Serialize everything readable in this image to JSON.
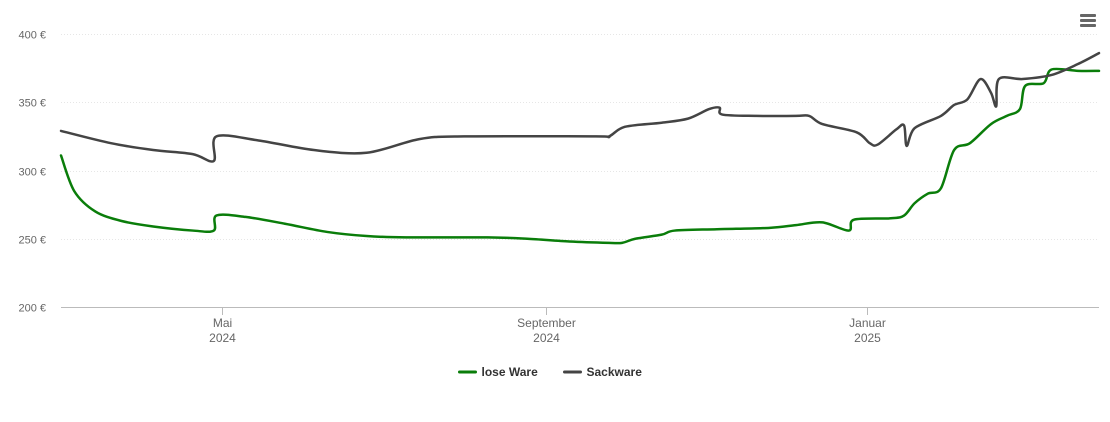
{
  "menu": {
    "icon": "hamburger-menu-icon"
  },
  "chart_data": {
    "type": "line",
    "title": "",
    "xlabel": "",
    "ylabel": "",
    "x_type": "date",
    "xlim": [
      "2024-03-01",
      "2025-03-30"
    ],
    "ylim": [
      200,
      400
    ],
    "y_ticks": [
      {
        "value": 200,
        "label": "200 €"
      },
      {
        "value": 250,
        "label": "250 €"
      },
      {
        "value": 300,
        "label": "300 €"
      },
      {
        "value": 350,
        "label": "350 €"
      },
      {
        "value": 400,
        "label": "400 €"
      }
    ],
    "x_ticks": [
      {
        "date": "2024-05-01",
        "label": "Mai",
        "sublabel": "2024"
      },
      {
        "date": "2024-09-01",
        "label": "September",
        "sublabel": "2024"
      },
      {
        "date": "2025-01-01",
        "label": "Januar",
        "sublabel": "2025"
      }
    ],
    "grid": "horizontal",
    "legend_position": "bottom-center",
    "series": [
      {
        "name": "lose Ware",
        "color": "#0a7d0a",
        "points": [
          [
            "2024-03-01",
            311
          ],
          [
            "2024-03-06",
            285
          ],
          [
            "2024-03-14",
            270
          ],
          [
            "2024-03-24",
            263
          ],
          [
            "2024-04-05",
            259
          ],
          [
            "2024-04-20",
            256
          ],
          [
            "2024-04-28",
            256
          ],
          [
            "2024-04-29",
            267
          ],
          [
            "2024-05-10",
            266
          ],
          [
            "2024-05-25",
            261
          ],
          [
            "2024-06-10",
            255
          ],
          [
            "2024-06-25",
            252
          ],
          [
            "2024-07-10",
            251
          ],
          [
            "2024-08-10",
            251
          ],
          [
            "2024-08-25",
            250
          ],
          [
            "2024-09-10",
            248
          ],
          [
            "2024-09-25",
            247
          ],
          [
            "2024-09-30",
            247
          ],
          [
            "2024-10-05",
            250
          ],
          [
            "2024-10-15",
            253
          ],
          [
            "2024-10-20",
            256
          ],
          [
            "2024-11-05",
            257
          ],
          [
            "2024-11-25",
            258
          ],
          [
            "2024-12-05",
            260
          ],
          [
            "2024-12-15",
            262
          ],
          [
            "2024-12-25",
            256
          ],
          [
            "2024-12-27",
            264
          ],
          [
            "2025-01-10",
            265
          ],
          [
            "2025-01-15",
            267
          ],
          [
            "2025-01-19",
            276
          ],
          [
            "2025-01-24",
            283
          ],
          [
            "2025-01-29",
            287
          ],
          [
            "2025-02-03",
            315
          ],
          [
            "2025-02-09",
            320
          ],
          [
            "2025-02-17",
            334
          ],
          [
            "2025-02-23",
            340
          ],
          [
            "2025-02-28",
            345
          ],
          [
            "2025-03-02",
            362
          ],
          [
            "2025-03-09",
            364
          ],
          [
            "2025-03-12",
            374
          ],
          [
            "2025-03-22",
            373
          ],
          [
            "2025-03-30",
            373
          ]
        ]
      },
      {
        "name": "Sackware",
        "color": "#444444",
        "points": [
          [
            "2024-03-01",
            329
          ],
          [
            "2024-03-20",
            320
          ],
          [
            "2024-04-05",
            315
          ],
          [
            "2024-04-20",
            312
          ],
          [
            "2024-04-28",
            307
          ],
          [
            "2024-04-29",
            325
          ],
          [
            "2024-05-15",
            322
          ],
          [
            "2024-06-05",
            315
          ],
          [
            "2024-06-25",
            313
          ],
          [
            "2024-07-15",
            323
          ],
          [
            "2024-08-01",
            325
          ],
          [
            "2024-09-20",
            325
          ],
          [
            "2024-09-25",
            325
          ],
          [
            "2024-10-01",
            332
          ],
          [
            "2024-10-15",
            335
          ],
          [
            "2024-10-25",
            338
          ],
          [
            "2024-11-02",
            345
          ],
          [
            "2024-11-06",
            346
          ],
          [
            "2024-11-07",
            341
          ],
          [
            "2024-11-20",
            340
          ],
          [
            "2024-12-05",
            340
          ],
          [
            "2024-12-10",
            340
          ],
          [
            "2024-12-15",
            334
          ],
          [
            "2024-12-28",
            328
          ],
          [
            "2025-01-02",
            320
          ],
          [
            "2025-01-05",
            319
          ],
          [
            "2025-01-12",
            330
          ],
          [
            "2025-01-15",
            333
          ],
          [
            "2025-01-16",
            318
          ],
          [
            "2025-01-19",
            331
          ],
          [
            "2025-01-29",
            340
          ],
          [
            "2025-02-03",
            348
          ],
          [
            "2025-02-08",
            352
          ],
          [
            "2025-02-13",
            367
          ],
          [
            "2025-02-17",
            357
          ],
          [
            "2025-02-19",
            347
          ],
          [
            "2025-02-20",
            367
          ],
          [
            "2025-03-01",
            367
          ],
          [
            "2025-03-12",
            370
          ],
          [
            "2025-03-22",
            378
          ],
          [
            "2025-03-30",
            386
          ]
        ]
      }
    ]
  }
}
